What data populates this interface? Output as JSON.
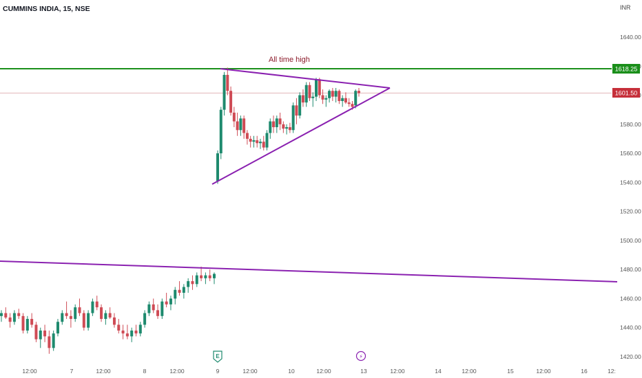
{
  "symbol_title": "CUMMINS INDIA, 15, NSE",
  "currency": "INR",
  "annotation_ath": "All time high",
  "badges": {
    "ath_price": "1618.25",
    "last_price": "1601.50"
  },
  "events": {
    "earnings_icon": "E",
    "split_icon": "⚡"
  },
  "colors": {
    "up": "#1e8a6e",
    "down": "#cf4b55",
    "ath_line": "#1a8f1a",
    "trend": "#8a20b0",
    "last_badge": "#c62f3a"
  },
  "chart_data": {
    "type": "candlestick",
    "ylim": [
      1415,
      1660
    ],
    "y_ticks": [
      "1640.00",
      "1620.00",
      "1600.00",
      "1580.00",
      "1560.00",
      "1540.00",
      "1520.00",
      "1500.00",
      "1480.00",
      "1460.00",
      "1440.00",
      "1420.00"
    ],
    "x_ticks": [
      "12:00",
      "7",
      "12:00",
      "8",
      "12:00",
      "9",
      "12:00",
      "10",
      "12:00",
      "13",
      "12:00",
      "14",
      "12:00",
      "15",
      "12:00",
      "16",
      "12:"
    ],
    "grid": false,
    "lines": [
      {
        "name": "all_time_high",
        "price": 1618.25
      },
      {
        "name": "last_price",
        "price": 1601.5
      }
    ],
    "candles": [
      [
        1448,
        1452,
        1444,
        1450
      ],
      [
        1450,
        1454,
        1446,
        1447
      ],
      [
        1447,
        1450,
        1440,
        1444
      ],
      [
        1444,
        1452,
        1442,
        1450
      ],
      [
        1450,
        1453,
        1446,
        1448
      ],
      [
        1448,
        1450,
        1436,
        1438
      ],
      [
        1438,
        1448,
        1436,
        1446
      ],
      [
        1446,
        1450,
        1440,
        1442
      ],
      [
        1442,
        1444,
        1430,
        1432
      ],
      [
        1432,
        1440,
        1426,
        1438
      ],
      [
        1438,
        1442,
        1430,
        1434
      ],
      [
        1434,
        1438,
        1422,
        1426
      ],
      [
        1426,
        1438,
        1424,
        1436
      ],
      [
        1436,
        1446,
        1434,
        1444
      ],
      [
        1444,
        1452,
        1442,
        1450
      ],
      [
        1450,
        1458,
        1446,
        1448
      ],
      [
        1448,
        1452,
        1440,
        1446
      ],
      [
        1446,
        1456,
        1444,
        1454
      ],
      [
        1454,
        1460,
        1448,
        1450
      ],
      [
        1450,
        1452,
        1438,
        1440
      ],
      [
        1440,
        1452,
        1438,
        1450
      ],
      [
        1450,
        1460,
        1448,
        1458
      ],
      [
        1458,
        1462,
        1452,
        1454
      ],
      [
        1454,
        1456,
        1444,
        1446
      ],
      [
        1446,
        1452,
        1442,
        1450
      ],
      [
        1450,
        1454,
        1446,
        1447
      ],
      [
        1447,
        1450,
        1440,
        1442
      ],
      [
        1442,
        1446,
        1436,
        1438
      ],
      [
        1438,
        1442,
        1432,
        1436
      ],
      [
        1436,
        1442,
        1432,
        1434
      ],
      [
        1434,
        1440,
        1430,
        1438
      ],
      [
        1438,
        1442,
        1434,
        1436
      ],
      [
        1436,
        1444,
        1434,
        1442
      ],
      [
        1442,
        1452,
        1440,
        1450
      ],
      [
        1450,
        1458,
        1448,
        1456
      ],
      [
        1456,
        1460,
        1450,
        1452
      ],
      [
        1452,
        1456,
        1446,
        1448
      ],
      [
        1448,
        1460,
        1446,
        1458
      ],
      [
        1458,
        1464,
        1454,
        1456
      ],
      [
        1456,
        1462,
        1452,
        1460
      ],
      [
        1460,
        1468,
        1456,
        1466
      ],
      [
        1466,
        1472,
        1462,
        1464
      ],
      [
        1464,
        1470,
        1460,
        1468
      ],
      [
        1468,
        1474,
        1464,
        1472
      ],
      [
        1472,
        1476,
        1466,
        1470
      ],
      [
        1470,
        1478,
        1468,
        1476
      ],
      [
        1476,
        1482,
        1472,
        1474
      ],
      [
        1474,
        1478,
        1470,
        1476
      ],
      [
        1476,
        1480,
        1472,
        1474
      ],
      [
        1474,
        1478,
        1470,
        1477
      ],
      [
        1541,
        1562,
        1539,
        1560
      ],
      [
        1560,
        1592,
        1556,
        1590
      ],
      [
        1590,
        1616,
        1586,
        1614
      ],
      [
        1614,
        1619,
        1600,
        1603
      ],
      [
        1603,
        1606,
        1586,
        1588
      ],
      [
        1588,
        1592,
        1578,
        1582
      ],
      [
        1582,
        1588,
        1572,
        1576
      ],
      [
        1576,
        1586,
        1572,
        1584
      ],
      [
        1584,
        1586,
        1570,
        1574
      ],
      [
        1574,
        1576,
        1566,
        1570
      ],
      [
        1570,
        1572,
        1564,
        1568
      ],
      [
        1568,
        1572,
        1564,
        1569
      ],
      [
        1569,
        1572,
        1564,
        1567
      ],
      [
        1567,
        1570,
        1563,
        1568
      ],
      [
        1568,
        1572,
        1562,
        1564
      ],
      [
        1564,
        1576,
        1562,
        1574
      ],
      [
        1574,
        1584,
        1570,
        1582
      ],
      [
        1582,
        1586,
        1574,
        1578
      ],
      [
        1578,
        1586,
        1574,
        1584
      ],
      [
        1584,
        1588,
        1576,
        1580
      ],
      [
        1580,
        1582,
        1574,
        1577
      ],
      [
        1577,
        1580,
        1573,
        1578
      ],
      [
        1578,
        1581,
        1574,
        1576
      ],
      [
        1576,
        1595,
        1574,
        1593
      ],
      [
        1593,
        1598,
        1580,
        1586
      ],
      [
        1586,
        1602,
        1584,
        1600
      ],
      [
        1600,
        1604,
        1592,
        1595
      ],
      [
        1595,
        1609,
        1592,
        1607
      ],
      [
        1607,
        1609,
        1596,
        1598
      ],
      [
        1598,
        1602,
        1592,
        1599
      ],
      [
        1599,
        1612,
        1596,
        1611
      ],
      [
        1611,
        1612,
        1598,
        1600
      ],
      [
        1600,
        1604,
        1594,
        1597
      ],
      [
        1597,
        1600,
        1592,
        1598
      ],
      [
        1598,
        1604,
        1595,
        1603
      ],
      [
        1603,
        1605,
        1596,
        1599
      ],
      [
        1599,
        1605,
        1595,
        1603
      ],
      [
        1603,
        1604,
        1594,
        1596
      ],
      [
        1596,
        1600,
        1592,
        1598
      ],
      [
        1598,
        1602,
        1594,
        1595
      ],
      [
        1595,
        1598,
        1592,
        1594
      ],
      [
        1594,
        1596,
        1590,
        1592
      ],
      [
        1593,
        1604,
        1591,
        1603
      ],
      [
        1603,
        1605,
        1599,
        1601.5
      ]
    ]
  }
}
